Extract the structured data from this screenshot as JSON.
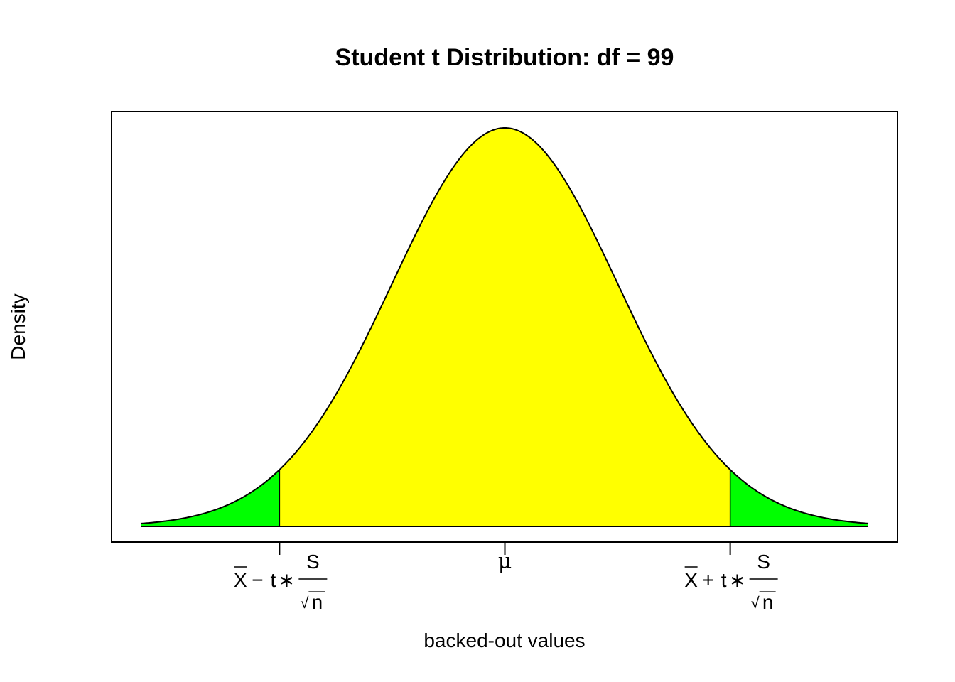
{
  "chart_data": {
    "type": "area",
    "title": "Student t Distribution: df = 99",
    "xlabel": "backed-out values",
    "ylabel": "Density",
    "df": 99,
    "critical_t": 1.984,
    "xlim": [
      -3.2,
      3.2
    ],
    "grid": false,
    "colors": {
      "center_region": "#ffff00",
      "tail_region": "#00ff00",
      "outline": "#000000"
    },
    "regions": [
      {
        "role": "left-tail",
        "from": -3.2,
        "to": -1.984,
        "color": "#00ff00"
      },
      {
        "role": "center",
        "from": -1.984,
        "to": 1.984,
        "color": "#ffff00"
      },
      {
        "role": "right-tail",
        "from": 1.984,
        "to": 3.2,
        "color": "#00ff00"
      }
    ],
    "ticks": [
      {
        "name": "lower-bound",
        "x": -1.984,
        "xbar": "X",
        "op": "−",
        "t": "t",
        "times": "∗",
        "numer": "S",
        "radical": "√",
        "denom": "n"
      },
      {
        "name": "mu",
        "x": 0,
        "label": "μ"
      },
      {
        "name": "upper-bound",
        "x": 1.984,
        "xbar": "X",
        "op": "+",
        "t": "t",
        "times": "∗",
        "numer": "S",
        "radical": "√",
        "denom": "n"
      }
    ]
  }
}
